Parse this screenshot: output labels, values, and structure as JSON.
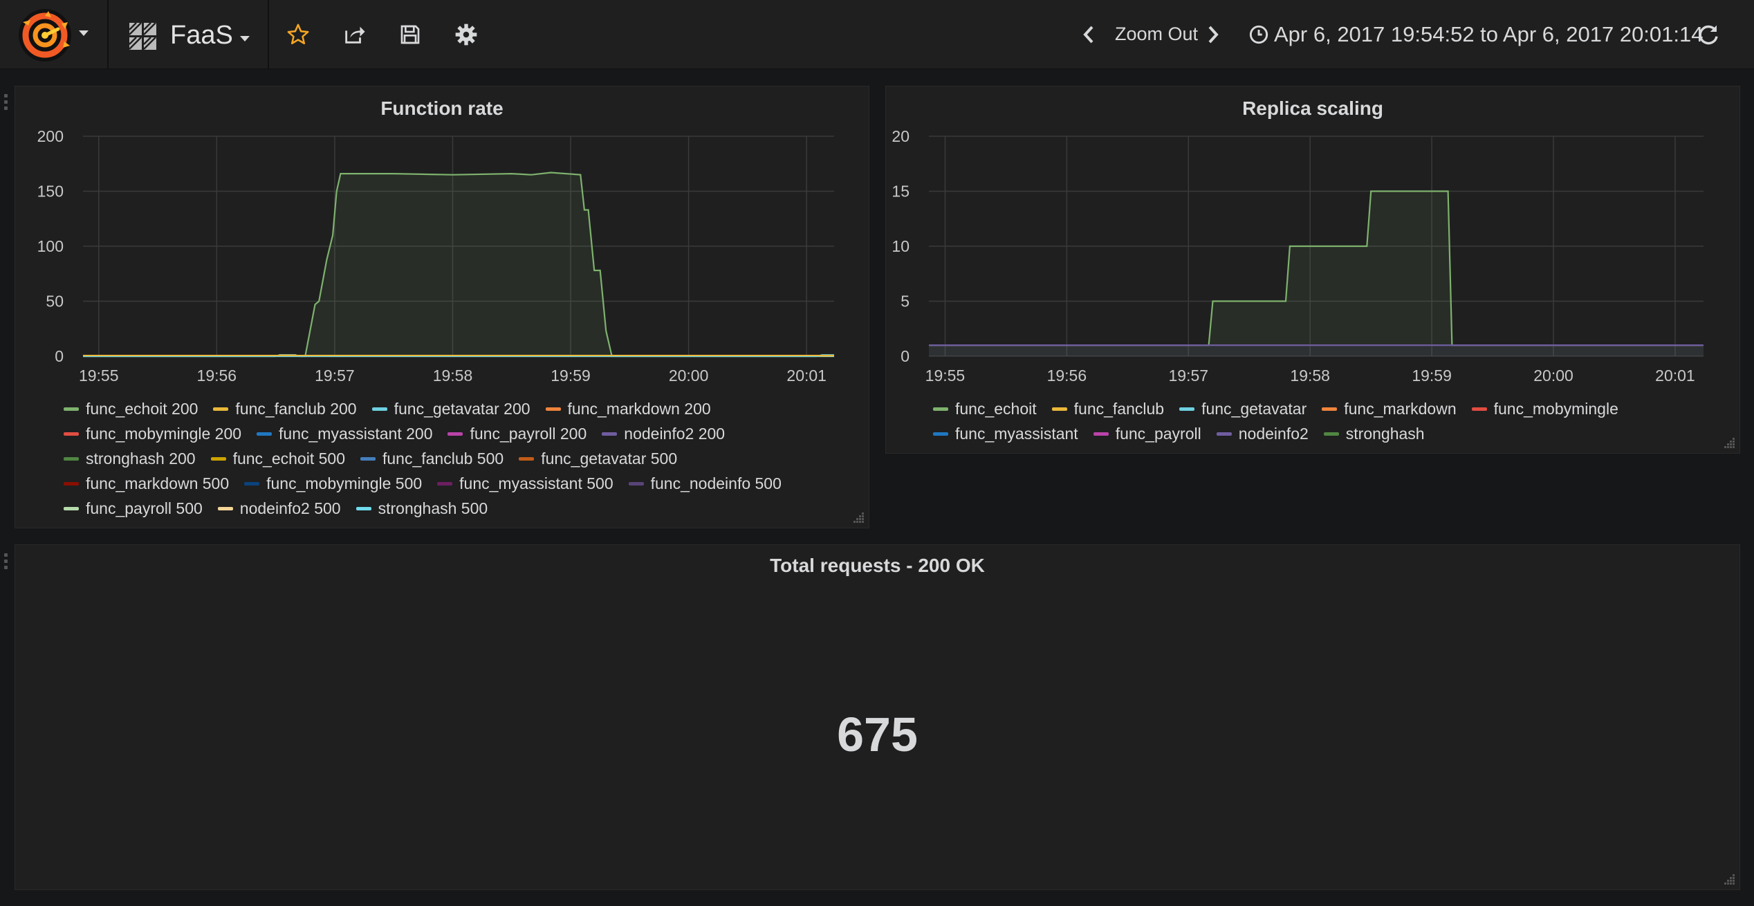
{
  "navbar": {
    "dashboard_title": "FaaS",
    "zoom_out_label": "Zoom Out",
    "time_range": "Apr 6, 2017 19:54:52 to Apr 6, 2017 20:01:14",
    "icons": {
      "logo": "grafana-logo",
      "dashboard": "dashboard-grid-icon",
      "star": "star-icon",
      "share": "share-icon",
      "save": "save-icon",
      "settings": "gear-icon",
      "back": "chevron-left-icon",
      "forward": "chevron-right-icon",
      "clock": "clock-icon",
      "refresh": "refresh-icon"
    },
    "colors": {
      "star": "#f5a623"
    }
  },
  "panels": {
    "function_rate": {
      "title": "Function rate",
      "yticks": [
        "200",
        "150",
        "100",
        "50",
        "0"
      ],
      "xticks": [
        "19:55",
        "19:56",
        "19:57",
        "19:58",
        "19:59",
        "20:00",
        "20:01"
      ],
      "legend": [
        [
          {
            "label": "func_echoit 200",
            "color": "#7eb26d"
          },
          {
            "label": "func_fanclub 200",
            "color": "#eab839"
          },
          {
            "label": "func_getavatar 200",
            "color": "#6ed0e0"
          },
          {
            "label": "func_markdown 200",
            "color": "#ef843c"
          }
        ],
        [
          {
            "label": "func_mobymingle 200",
            "color": "#e24d42"
          },
          {
            "label": "func_myassistant 200",
            "color": "#1f78c1"
          },
          {
            "label": "func_payroll 200",
            "color": "#ba43a9"
          },
          {
            "label": "nodeinfo2 200",
            "color": "#705da0"
          }
        ],
        [
          {
            "label": "stronghash 200",
            "color": "#508642"
          },
          {
            "label": "func_echoit 500",
            "color": "#cca300"
          },
          {
            "label": "func_fanclub 500",
            "color": "#447ebc"
          },
          {
            "label": "func_getavatar 500",
            "color": "#c15c17"
          }
        ],
        [
          {
            "label": "func_markdown 500",
            "color": "#890f02"
          },
          {
            "label": "func_mobymingle 500",
            "color": "#0a437c"
          },
          {
            "label": "func_myassistant 500",
            "color": "#6d1f62"
          },
          {
            "label": "func_nodeinfo 500",
            "color": "#584477"
          }
        ],
        [
          {
            "label": "func_payroll 500",
            "color": "#b7dbab"
          },
          {
            "label": "nodeinfo2 500",
            "color": "#f4d598"
          },
          {
            "label": "stronghash 500",
            "color": "#70dbed"
          }
        ]
      ]
    },
    "replica_scaling": {
      "title": "Replica scaling",
      "yticks": [
        "20",
        "15",
        "10",
        "5",
        "0"
      ],
      "xticks": [
        "19:55",
        "19:56",
        "19:57",
        "19:58",
        "19:59",
        "20:00",
        "20:01"
      ],
      "legend": [
        [
          {
            "label": "func_echoit",
            "color": "#7eb26d"
          },
          {
            "label": "func_fanclub",
            "color": "#eab839"
          },
          {
            "label": "func_getavatar",
            "color": "#6ed0e0"
          },
          {
            "label": "func_markdown",
            "color": "#ef843c"
          },
          {
            "label": "func_mobymingle",
            "color": "#e24d42"
          }
        ],
        [
          {
            "label": "func_myassistant",
            "color": "#1f78c1"
          },
          {
            "label": "func_payroll",
            "color": "#ba43a9"
          },
          {
            "label": "nodeinfo2",
            "color": "#705da0"
          },
          {
            "label": "stronghash",
            "color": "#508642"
          }
        ]
      ]
    },
    "total_requests": {
      "title": "Total requests - 200 OK",
      "value": "675"
    }
  },
  "chart_data": [
    {
      "type": "area",
      "title": "Function rate",
      "ylim": [
        0,
        200
      ],
      "xlim": [
        "19:54:52",
        "20:01:14"
      ],
      "series": [
        {
          "name": "func_echoit 200",
          "color": "#7eb26d",
          "x": [
            "19:54:52",
            "19:56:45",
            "19:56:50",
            "19:56:52",
            "19:56:56",
            "19:56:59",
            "19:57:01",
            "19:57:03",
            "19:57:05",
            "19:57:30",
            "19:58:00",
            "19:58:30",
            "19:58:40",
            "19:58:50",
            "19:59:05",
            "19:59:07",
            "19:59:09",
            "19:59:12",
            "19:59:15",
            "19:59:18",
            "19:59:21",
            "20:01:14"
          ],
          "values": [
            0,
            0,
            47,
            50,
            88,
            110,
            150,
            166,
            166,
            166,
            165,
            166,
            165,
            167,
            165,
            133,
            133,
            78,
            78,
            23,
            0,
            0
          ]
        },
        {
          "name": "func_payroll 500",
          "color": "#b7dbab",
          "x": [
            "19:54:52",
            "19:56:30",
            "19:56:32",
            "19:56:40",
            "19:56:42",
            "20:01:14"
          ],
          "values": [
            0,
            0,
            1,
            1,
            0,
            0
          ]
        },
        {
          "name": "stronghash 500",
          "color": "#70dbed",
          "x": [
            "19:54:52",
            "20:01:05",
            "20:01:08",
            "20:01:14"
          ],
          "values": [
            0,
            0,
            1,
            1
          ]
        }
      ]
    },
    {
      "type": "area",
      "title": "Replica scaling",
      "ylim": [
        0,
        20
      ],
      "xlim": [
        "19:54:52",
        "20:01:14"
      ],
      "series": [
        {
          "name": "func_echoit",
          "color": "#7eb26d",
          "x": [
            "19:54:52",
            "19:57:10",
            "19:57:12",
            "19:57:48",
            "19:57:50",
            "19:58:28",
            "19:58:30",
            "19:59:08",
            "19:59:10",
            "20:01:14"
          ],
          "values": [
            1,
            1,
            5,
            5,
            10,
            10,
            15,
            15,
            1,
            1
          ]
        },
        {
          "name": "nodeinfo2",
          "color": "#705da0",
          "x": [
            "19:54:52",
            "20:01:14"
          ],
          "values": [
            1,
            1
          ]
        }
      ]
    }
  ]
}
